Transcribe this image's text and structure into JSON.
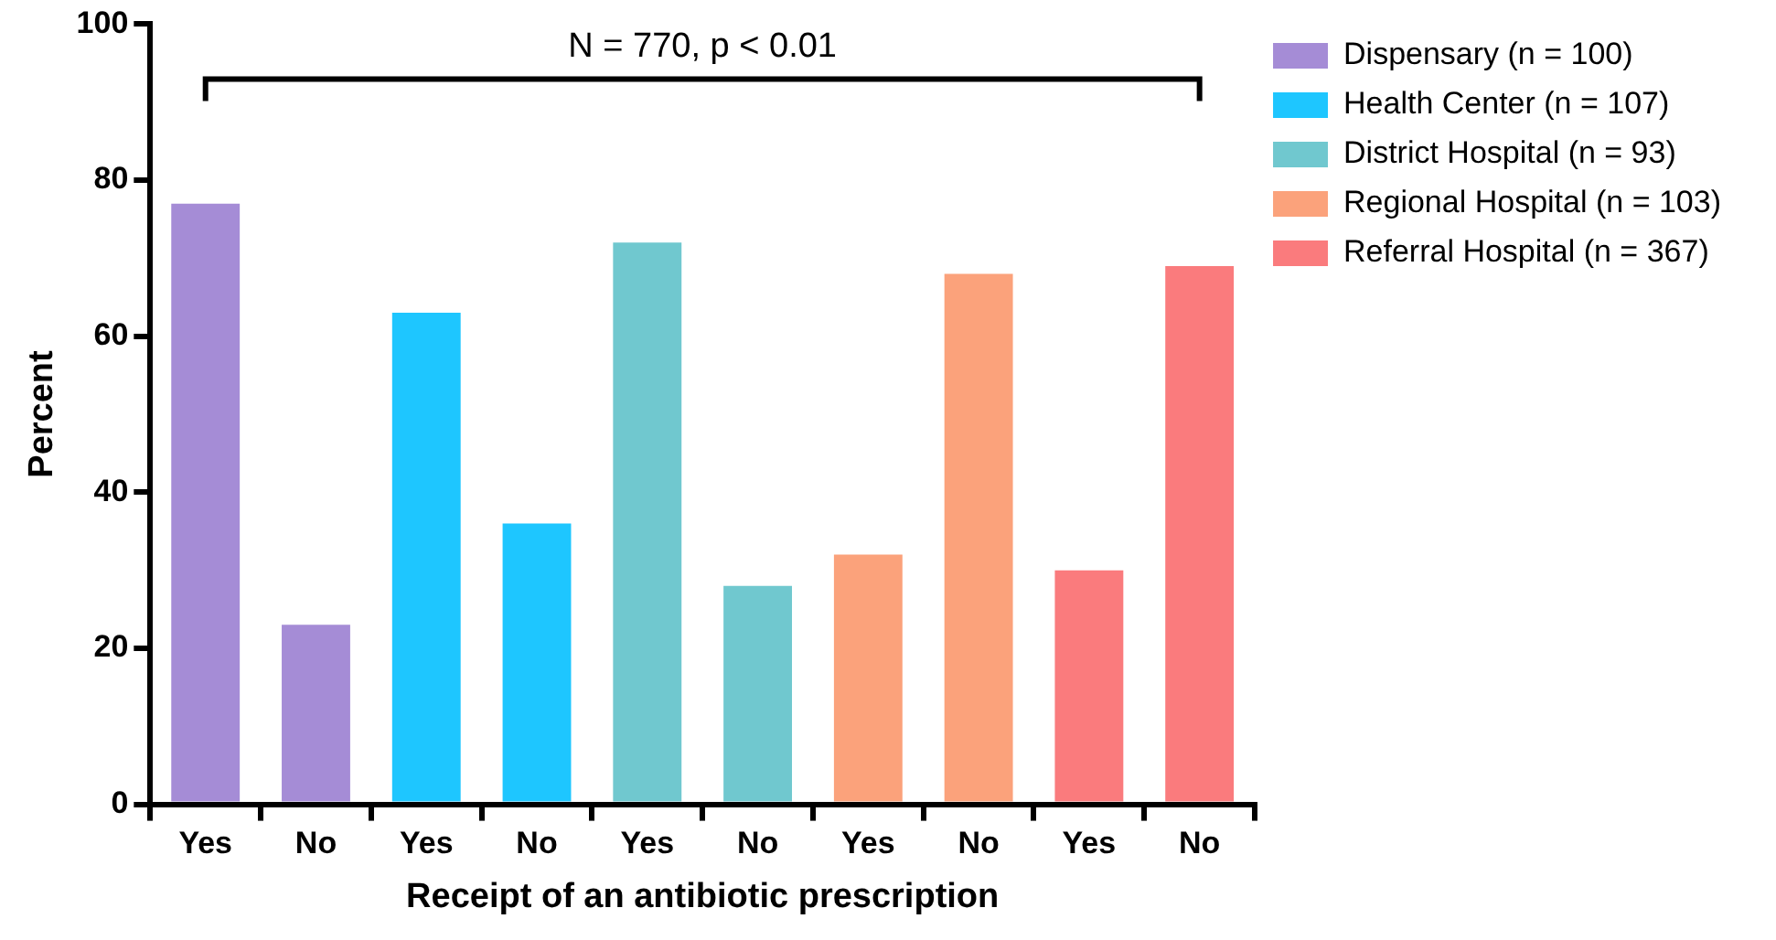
{
  "chart_data": {
    "type": "bar",
    "xlabel": "Receipt of an antibiotic prescription",
    "ylabel": "Percent",
    "categories": [
      "Yes",
      "No",
      "Yes",
      "No",
      "Yes",
      "No",
      "Yes",
      "No",
      "Yes",
      "No"
    ],
    "series": [
      {
        "name": "Dispensary (n = 100)",
        "color": "#a58cd6",
        "values": [
          77,
          23,
          null,
          null,
          null,
          null,
          null,
          null,
          null,
          null
        ]
      },
      {
        "name": "Health Center (n = 107)",
        "color": "#1ec6ff",
        "values": [
          null,
          null,
          63,
          36,
          null,
          null,
          null,
          null,
          null,
          null
        ]
      },
      {
        "name": "District Hospital (n = 93)",
        "color": "#70c8cf",
        "values": [
          null,
          null,
          null,
          null,
          72,
          28,
          null,
          null,
          null,
          null
        ]
      },
      {
        "name": "Regional Hospital (n = 103)",
        "color": "#fba27b",
        "values": [
          null,
          null,
          null,
          null,
          null,
          null,
          32,
          68,
          null,
          null
        ]
      },
      {
        "name": "Referral Hospital (n = 367)",
        "color": "#fa7b7d",
        "values": [
          null,
          null,
          null,
          null,
          null,
          null,
          null,
          null,
          30,
          69
        ]
      }
    ],
    "ylim": [
      0,
      100
    ],
    "yticks": [
      0,
      20,
      40,
      60,
      80,
      100
    ],
    "grid": false,
    "legend": "right",
    "annotations": [
      "N = 770, p < 0.01"
    ]
  }
}
